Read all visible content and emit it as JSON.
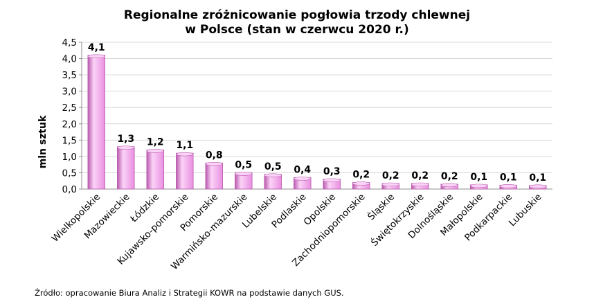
{
  "title_line1": "Regionalne zróżnicowanie pogłowia trzody chlewnej",
  "title_line2": "w Polsce (stan w czerwcu 2020 r.)",
  "source": "Źródło: opracowanie Biura Analiz i Strategii KOWR na podstawie danych GUS.",
  "colors": {
    "bar": "#e98fe0",
    "bar_light": "#fbd3f7",
    "bar_dark": "#b959ad",
    "grid": "#d9d9d9",
    "axis": "#8c8c8c"
  },
  "chart_data": {
    "type": "bar",
    "title": "Regionalne zróżnicowanie pogłowia trzody chlewnej w Polsce (stan w czerwcu 2020 r.)",
    "xlabel": "",
    "ylabel": "mln sztuk",
    "ylim": [
      0,
      4.5
    ],
    "yticks": [
      "0,0",
      "0,5",
      "1,0",
      "1,5",
      "2,0",
      "2,5",
      "3,0",
      "3,5",
      "4,0",
      "4,5"
    ],
    "grid": true,
    "legend": "none",
    "categories": [
      "Wielkopolskie",
      "Mazowieckie",
      "Łódzkie",
      "Kujawsko-pomorskie",
      "Pomorskie",
      "Warmińsko-mazurskie",
      "Lubelskie",
      "Podlaskie",
      "Opolskie",
      "Zachodniopomorskie",
      "Śląskie",
      "Świętokrzyskie",
      "Dolnośląskie",
      "Małopolskie",
      "Podkarpackie",
      "Lubuskie"
    ],
    "values": [
      4.1,
      1.3,
      1.2,
      1.1,
      0.8,
      0.5,
      0.45,
      0.35,
      0.3,
      0.2,
      0.17,
      0.17,
      0.15,
      0.13,
      0.12,
      0.11
    ],
    "data_labels": [
      "4,1",
      "1,3",
      "1,2",
      "1,1",
      "0,8",
      "0,5",
      "0,5",
      "0,4",
      "0,3",
      "0,2",
      "0,2",
      "0,2",
      "0,2",
      "0,1",
      "0,1",
      "0,1"
    ]
  }
}
